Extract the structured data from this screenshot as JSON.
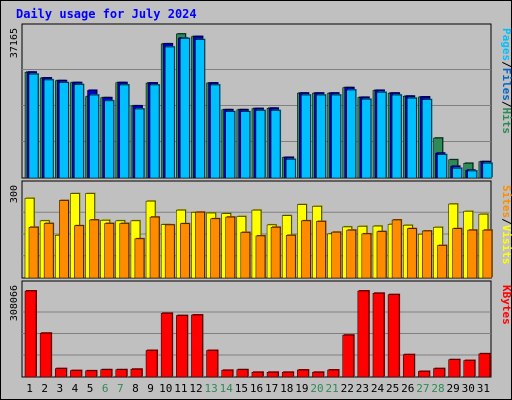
{
  "chart_data": [
    {
      "type": "bar",
      "title": "Daily usage for July 2024",
      "categories": [
        "1",
        "2",
        "3",
        "4",
        "5",
        "6",
        "7",
        "8",
        "9",
        "10",
        "11",
        "12",
        "13",
        "14",
        "15",
        "16",
        "17",
        "18",
        "19",
        "20",
        "21",
        "22",
        "23",
        "24",
        "25",
        "26",
        "27",
        "28",
        "29",
        "30",
        "31"
      ],
      "weekend_days": [
        "6",
        "7",
        "13",
        "14",
        "20",
        "21",
        "27",
        "28"
      ],
      "ymax_label": "37165",
      "ymax": 37165,
      "axis_label_parts": [
        "Pages",
        "/",
        "Files",
        "/",
        "Hits"
      ],
      "axis_label_colors": [
        "#00bfff",
        "#000000",
        "#0066cc",
        "#000000",
        "#2e8b57"
      ],
      "series": [
        {
          "name": "Hits",
          "color": "#2e8b57",
          "values": [
            27300,
            25800,
            25100,
            24600,
            21000,
            20700,
            24600,
            18600,
            24500,
            34600,
            37165,
            36500,
            24500,
            17600,
            17600,
            17900,
            18000,
            5300,
            21900,
            21900,
            21900,
            23300,
            20800,
            22600,
            21900,
            21100,
            20900,
            10300,
            4700,
            3800,
            4200
          ]
        },
        {
          "name": "Files",
          "color": "#0000cd",
          "values": [
            27300,
            25800,
            25100,
            24600,
            22600,
            20700,
            24600,
            18600,
            24500,
            34600,
            36100,
            36500,
            24500,
            17600,
            17600,
            17900,
            18000,
            5300,
            21900,
            21900,
            21900,
            23300,
            20800,
            22600,
            21900,
            21100,
            20900,
            6400,
            3000,
            2000,
            4200
          ]
        },
        {
          "name": "Pages",
          "color": "#00bfff",
          "values": [
            26800,
            25300,
            24600,
            24100,
            21400,
            19900,
            24000,
            17800,
            24000,
            33800,
            36000,
            35700,
            24000,
            17100,
            17100,
            17400,
            17400,
            4800,
            21400,
            21400,
            21400,
            22700,
            20300,
            22100,
            21400,
            20600,
            20200,
            6000,
            2500,
            1800,
            3800
          ]
        }
      ]
    },
    {
      "type": "bar",
      "categories": [
        "1",
        "2",
        "3",
        "4",
        "5",
        "6",
        "7",
        "8",
        "9",
        "10",
        "11",
        "12",
        "13",
        "14",
        "15",
        "16",
        "17",
        "18",
        "19",
        "20",
        "21",
        "22",
        "23",
        "24",
        "25",
        "26",
        "27",
        "28",
        "29",
        "30",
        "31"
      ],
      "ymax_label": "300",
      "ymax": 300,
      "axis_label_parts": [
        "Sites",
        "/",
        "Visits"
      ],
      "axis_label_colors": [
        "#ff8c00",
        "#000000",
        "#ffff00"
      ],
      "series": [
        {
          "name": "Visits",
          "color": "#ffff00",
          "values": [
            275,
            197,
            147,
            291,
            291,
            199,
            197,
            197,
            265,
            184,
            234,
            226,
            224,
            222,
            212,
            234,
            183,
            215,
            253,
            247,
            152,
            176,
            178,
            179,
            185,
            182,
            151,
            175,
            255,
            230,
            220
          ]
        },
        {
          "name": "Sites",
          "color": "#ff8c00",
          "values": [
            175,
            188,
            267,
            180,
            200,
            188,
            188,
            135,
            210,
            183,
            187,
            227,
            204,
            210,
            157,
            145,
            175,
            147,
            197,
            195,
            158,
            165,
            152,
            160,
            200,
            170,
            162,
            112,
            170,
            165,
            165
          ]
        }
      ]
    },
    {
      "type": "bar",
      "categories": [
        "1",
        "2",
        "3",
        "4",
        "5",
        "6",
        "7",
        "8",
        "9",
        "10",
        "11",
        "12",
        "13",
        "14",
        "15",
        "16",
        "17",
        "18",
        "19",
        "20",
        "21",
        "22",
        "23",
        "24",
        "25",
        "26",
        "27",
        "28",
        "29",
        "30",
        "31"
      ],
      "ymax_label": "308066",
      "ymax": 308066,
      "axis_label_parts": [
        "KBytes"
      ],
      "axis_label_colors": [
        "#ff0000"
      ],
      "series": [
        {
          "name": "KBytes",
          "color": "#ff0000",
          "values": [
            308066,
            157000,
            30000,
            23000,
            22000,
            26000,
            26000,
            28000,
            95000,
            228000,
            220000,
            222000,
            95000,
            24000,
            26000,
            17000,
            17000,
            17000,
            25000,
            17000,
            25000,
            150000,
            308066,
            300000,
            295000,
            80000,
            20000,
            30000,
            62000,
            59000,
            83000
          ]
        }
      ]
    }
  ]
}
